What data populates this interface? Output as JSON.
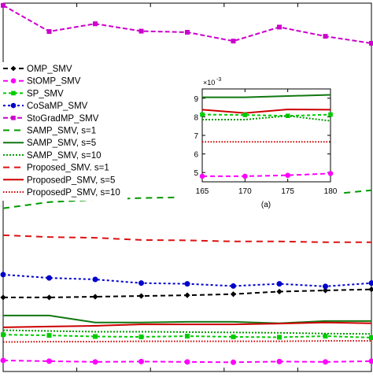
{
  "chart_data": [
    {
      "panel": "main",
      "type": "line",
      "title": "",
      "xlabel": "",
      "ylabel": "",
      "x": [
        1,
        2,
        3,
        4,
        5,
        6,
        7,
        8,
        9
      ],
      "xlim": [
        1,
        9
      ],
      "ylim": [
        0,
        1
      ],
      "grid": false,
      "legend": "left",
      "series": [
        {
          "name": "OMP_SMV",
          "color": "#000000",
          "dash": "6,4",
          "marker": "diamond",
          "values": [
            0.201,
            0.201,
            0.203,
            0.205,
            0.207,
            0.21,
            0.217,
            0.22,
            0.223
          ]
        },
        {
          "name": "StOMP_SMV",
          "color": "#ff00ff",
          "dash": "6,4",
          "marker": "circle",
          "values": [
            0.03,
            0.028,
            0.026,
            0.027,
            0.026,
            0.025,
            0.027,
            0.026,
            0.028
          ]
        },
        {
          "name": "SP_SMV",
          "color": "#00cc00",
          "dash": "4,3",
          "marker": "square",
          "values": [
            0.1,
            0.098,
            0.095,
            0.094,
            0.096,
            0.094,
            0.093,
            0.096,
            0.092
          ]
        },
        {
          "name": "CoSaMP_SMV",
          "color": "#0000cc",
          "dash": "3,3",
          "marker": "circle",
          "values": [
            0.263,
            0.254,
            0.25,
            0.24,
            0.238,
            0.232,
            0.238,
            0.231,
            0.24
          ]
        },
        {
          "name": "StoGradMP_SMV",
          "color": "#cc00cc",
          "dash": "6,3",
          "marker": "square",
          "values": [
            0.994,
            0.923,
            0.944,
            0.924,
            0.921,
            0.897,
            0.935,
            0.91,
            0.891
          ]
        },
        {
          "name": "SAMP_SMV, s=1",
          "color": "#009900",
          "dash": "8,6",
          "marker": "",
          "values": [
            0.443,
            0.46,
            0.466,
            0.471,
            0.473,
            0.473,
            0.477,
            0.48,
            0.492
          ]
        },
        {
          "name": "SAMP_SMV, s=5",
          "color": "#117711",
          "dash": "",
          "marker": "",
          "values": [
            0.152,
            0.152,
            0.133,
            0.133,
            0.135,
            0.135,
            0.131,
            0.137,
            0.137
          ]
        },
        {
          "name": "SAMP_SMV, s=10",
          "color": "#009900",
          "dash": "2,2",
          "marker": "",
          "values": [
            0.112,
            0.11,
            0.108,
            0.108,
            0.107,
            0.106,
            0.105,
            0.103,
            0.102
          ]
        },
        {
          "name": "Proposed_SMV. s=1",
          "color": "#dd1111",
          "dash": "8,6",
          "marker": "",
          "values": [
            0.37,
            0.365,
            0.363,
            0.357,
            0.356,
            0.353,
            0.353,
            0.351,
            0.351
          ]
        },
        {
          "name": "ProposedP_SMV, s=5",
          "color": "#cc0000",
          "dash": "",
          "marker": "",
          "values": [
            0.12,
            0.122,
            0.124,
            0.128,
            0.128,
            0.128,
            0.13,
            0.133,
            0.131
          ]
        },
        {
          "name": "ProposedP_SMV, s=10",
          "color": "#cc0000",
          "dash": "1.5,2",
          "marker": "",
          "values": [
            0.08,
            0.081,
            0.081,
            0.082,
            0.082,
            0.082,
            0.082,
            0.083,
            0.083
          ]
        }
      ]
    },
    {
      "panel": "inset",
      "type": "line",
      "caption": "(a)",
      "exponent_label": "10",
      "exponent_power": "-3",
      "x": [
        165,
        170,
        175,
        180
      ],
      "xticks": [
        165,
        170,
        175,
        180
      ],
      "xlim": [
        165,
        180
      ],
      "yticks": [
        5,
        6,
        7,
        8,
        9
      ],
      "ylim": [
        4.5,
        9.5
      ],
      "grid": false,
      "series": [
        {
          "color": "#117711",
          "dash": "",
          "marker": "",
          "values": [
            9.05,
            9.05,
            9.12,
            9.18
          ]
        },
        {
          "color": "#cc0000",
          "dash": "",
          "marker": "",
          "values": [
            8.38,
            8.2,
            8.4,
            8.38
          ]
        },
        {
          "color": "#00cc00",
          "dash": "4,3",
          "marker": "square",
          "values": [
            8.12,
            8.1,
            8.05,
            8.12
          ]
        },
        {
          "color": "#009900",
          "dash": "2,2",
          "marker": "",
          "values": [
            7.85,
            7.85,
            8.05,
            7.78
          ]
        },
        {
          "color": "#cc0000",
          "dash": "1.5,2",
          "marker": "",
          "values": [
            6.65,
            6.65,
            6.65,
            6.65
          ]
        },
        {
          "color": "#ff00ff",
          "dash": "6,4",
          "marker": "circle",
          "values": [
            4.8,
            4.8,
            4.85,
            4.95
          ]
        }
      ]
    }
  ]
}
